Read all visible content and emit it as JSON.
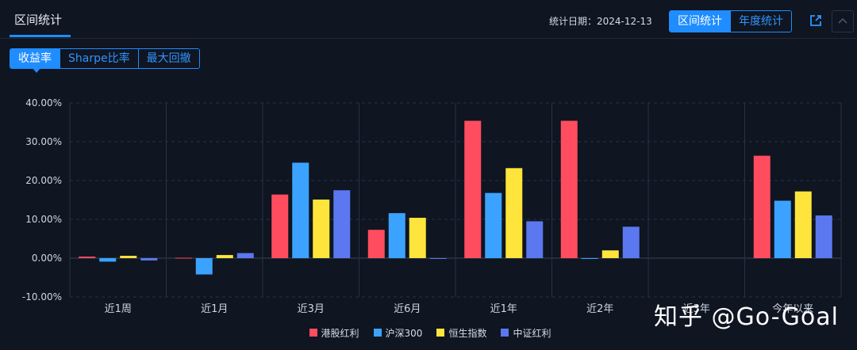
{
  "header": {
    "tab_label": "区间统计",
    "stat_date_label": "统计日期：",
    "stat_date": "2024-12-13",
    "mode_options": [
      "区间统计",
      "年度统计"
    ]
  },
  "metric_tabs": [
    "收益率",
    "Sharpe比率",
    "最大回撤"
  ],
  "icons": {
    "export": "share-export-icon",
    "collapse": "chevron-up-icon"
  },
  "watermark": "知乎 @Go-Goal",
  "chart_data": {
    "type": "bar",
    "categories": [
      "近1周",
      "近1月",
      "近3月",
      "近6月",
      "近1年",
      "近2年",
      "近3年",
      "今年以来"
    ],
    "ylim": [
      -10,
      40
    ],
    "yticks": [
      "-10.00%",
      "0.00%",
      "10.00%",
      "20.00%",
      "30.00%",
      "40.00%"
    ],
    "ytick_values": [
      -10,
      0,
      10,
      20,
      30,
      40
    ],
    "grid": true,
    "legend_position": "bottom-center",
    "series": [
      {
        "name": "港股红利",
        "color": "#ff4d5f",
        "values": [
          0.4,
          0.1,
          16.4,
          7.3,
          35.4,
          35.4,
          null,
          26.4
        ]
      },
      {
        "name": "沪深300",
        "color": "#3ba3ff",
        "values": [
          -0.9,
          -4.2,
          24.6,
          11.6,
          16.8,
          -0.2,
          null,
          14.8
        ]
      },
      {
        "name": "恒生指数",
        "color": "#ffe53b",
        "values": [
          0.6,
          0.8,
          15.1,
          10.4,
          23.2,
          2.0,
          null,
          17.2
        ]
      },
      {
        "name": "中证红利",
        "color": "#5b78f0",
        "values": [
          -0.6,
          1.3,
          17.5,
          -0.1,
          9.5,
          8.1,
          null,
          11.0
        ]
      }
    ]
  }
}
